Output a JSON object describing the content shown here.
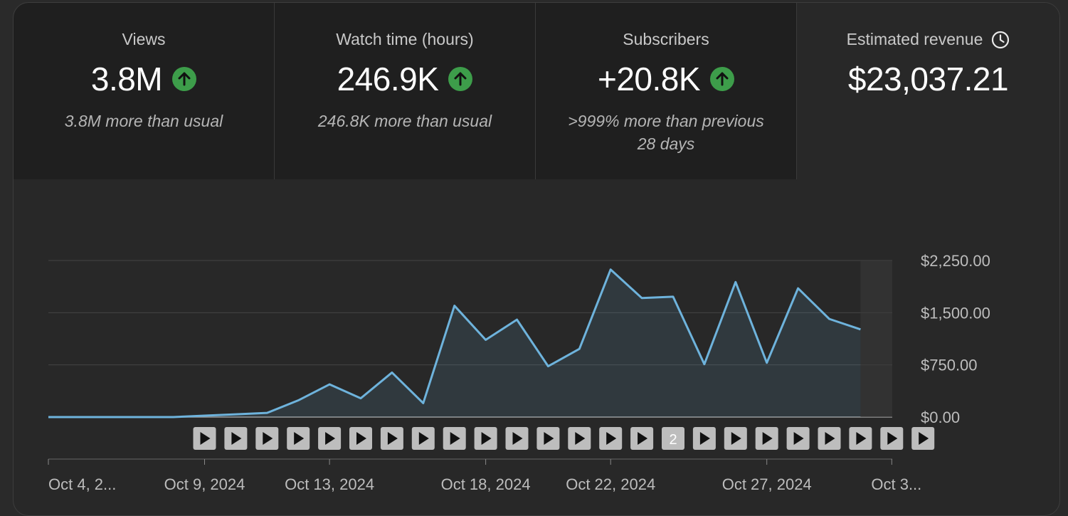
{
  "metrics": [
    {
      "label": "Views",
      "value": "3.8M",
      "trend": "up",
      "sub": "3.8M more than usual"
    },
    {
      "label": "Watch time (hours)",
      "value": "246.9K",
      "trend": "up",
      "sub": "246.8K more than usual"
    },
    {
      "label": "Subscribers",
      "value": "+20.8K",
      "trend": "up",
      "sub": ">999% more than previous 28 days"
    },
    {
      "label": "Estimated revenue",
      "value": "$23,037.21",
      "trend": "none",
      "sub": ""
    }
  ],
  "icons": {
    "trend": "arrow-up-icon",
    "revenue_info": "clock-icon",
    "marker": "play-icon"
  },
  "colors": {
    "line": "#6eb3dc",
    "trend_up": "#3d9d4a",
    "marker_bg": "#bdbdbd"
  },
  "chart_data": {
    "type": "area",
    "x": [
      "Oct 4, 2024",
      "Oct 5, 2024",
      "Oct 6, 2024",
      "Oct 7, 2024",
      "Oct 8, 2024",
      "Oct 9, 2024",
      "Oct 10, 2024",
      "Oct 11, 2024",
      "Oct 12, 2024",
      "Oct 13, 2024",
      "Oct 14, 2024",
      "Oct 15, 2024",
      "Oct 16, 2024",
      "Oct 17, 2024",
      "Oct 18, 2024",
      "Oct 19, 2024",
      "Oct 20, 2024",
      "Oct 21, 2024",
      "Oct 22, 2024",
      "Oct 23, 2024",
      "Oct 24, 2024",
      "Oct 25, 2024",
      "Oct 26, 2024",
      "Oct 27, 2024",
      "Oct 28, 2024",
      "Oct 29, 2024",
      "Oct 30, 2024",
      "Oct 31, 2024"
    ],
    "values": [
      0,
      0,
      0,
      0,
      0,
      20,
      40,
      60,
      240,
      470,
      270,
      640,
      200,
      1600,
      1110,
      1400,
      730,
      980,
      2120,
      1710,
      1730,
      760,
      1940,
      780,
      1850,
      1410,
      1260,
      null
    ],
    "ylim": [
      0,
      2250
    ],
    "y_ticks": [
      "$2,250.00",
      "$1,500.00",
      "$750.00",
      "$0.00"
    ],
    "x_tick_labels": [
      {
        "index": 0,
        "label": "Oct 4, 2..."
      },
      {
        "index": 5,
        "label": "Oct 9, 2024"
      },
      {
        "index": 9,
        "label": "Oct 13, 2024"
      },
      {
        "index": 14,
        "label": "Oct 18, 2024"
      },
      {
        "index": 18,
        "label": "Oct 22, 2024"
      },
      {
        "index": 23,
        "label": "Oct 27, 2024"
      },
      {
        "index": 27,
        "label": "Oct 3..."
      }
    ],
    "markers": [
      "",
      "",
      "",
      "",
      "",
      "",
      "",
      "",
      "",
      "",
      "",
      "",
      "",
      "",
      "",
      "2",
      "",
      "",
      "",
      "",
      "",
      "",
      "",
      ""
    ],
    "marker_start_index": 5,
    "legend": "none",
    "grid": true
  }
}
